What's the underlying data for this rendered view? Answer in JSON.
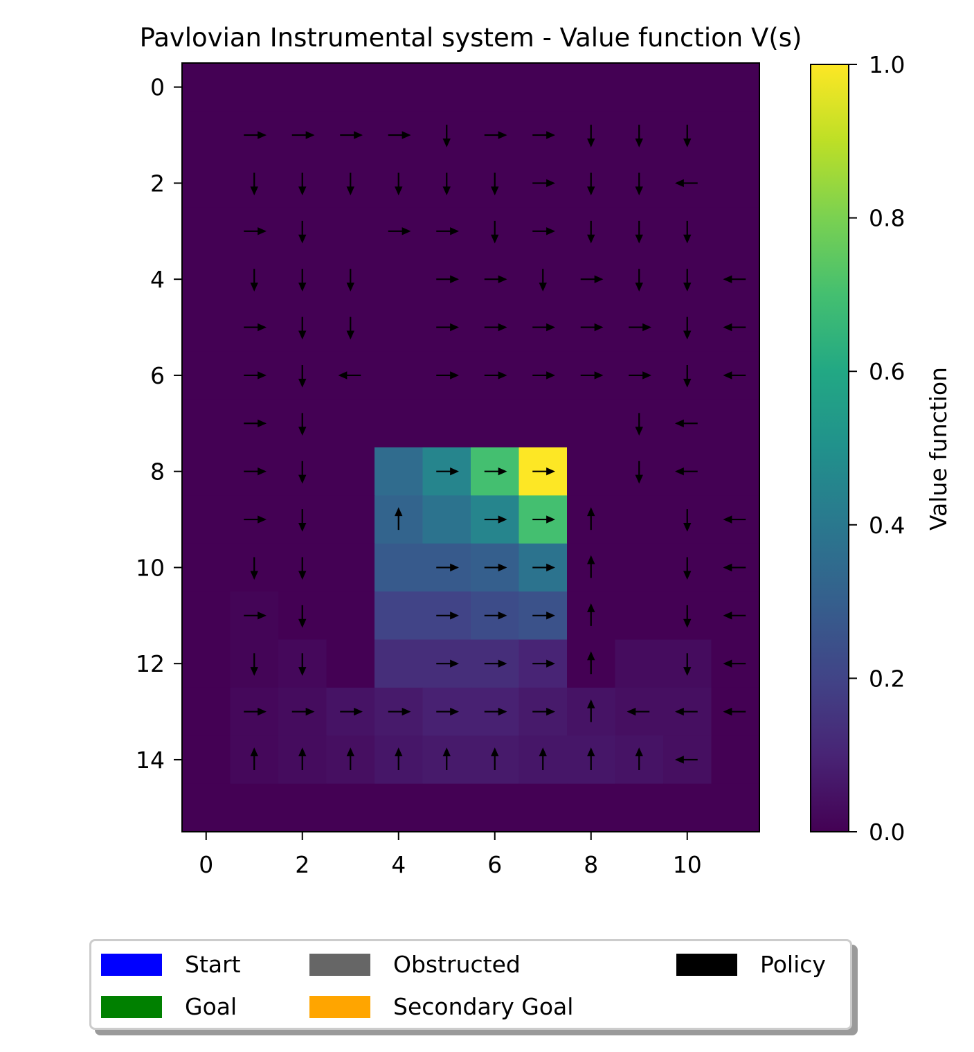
{
  "chart_data": {
    "type": "heatmap",
    "title": "Pavlovian Instrumental system - Value function V(s)",
    "xlabel": "",
    "ylabel": "",
    "xlim": [
      -0.5,
      11.5
    ],
    "ylim": [
      15.5,
      -0.5
    ],
    "x_ticks": [
      "0",
      "2",
      "4",
      "6",
      "8",
      "10"
    ],
    "y_ticks": [
      "0",
      "2",
      "4",
      "6",
      "8",
      "10",
      "12",
      "14"
    ],
    "colormap": "viridis",
    "colorbar": {
      "label": "Value function",
      "range": [
        0,
        1
      ],
      "ticks": [
        "0.0",
        "0.2",
        "0.4",
        "0.6",
        "0.8",
        "1.0"
      ]
    },
    "grid_size": {
      "rows": 16,
      "cols": 12
    },
    "values": [
      [
        0,
        0,
        0,
        0,
        0,
        0,
        0,
        0,
        0,
        0,
        0,
        0
      ],
      [
        0,
        0,
        0,
        0,
        0,
        0,
        0,
        0,
        0,
        0,
        0,
        0
      ],
      [
        0,
        0,
        0,
        0,
        0,
        0,
        0,
        0,
        0,
        0,
        0,
        0
      ],
      [
        0,
        0,
        0,
        0,
        0,
        0,
        0,
        0,
        0,
        0,
        0,
        0
      ],
      [
        0,
        0,
        0,
        0,
        0,
        0,
        0,
        0,
        0,
        0,
        0,
        0
      ],
      [
        0,
        0,
        0,
        0,
        0,
        0,
        0,
        0,
        0,
        0,
        0,
        0
      ],
      [
        0,
        0,
        0,
        0,
        0,
        0,
        0,
        0,
        0,
        0,
        0,
        0
      ],
      [
        0,
        0,
        0,
        0,
        0,
        0,
        0,
        0,
        0,
        0,
        0,
        0
      ],
      [
        0,
        0,
        0,
        0,
        0.35,
        0.45,
        0.7,
        1.0,
        0,
        0,
        0,
        0
      ],
      [
        0,
        0,
        0,
        0,
        0.32,
        0.38,
        0.45,
        0.7,
        0,
        0,
        0,
        0
      ],
      [
        0,
        0,
        0,
        0,
        0.28,
        0.28,
        0.3,
        0.38,
        0,
        0,
        0,
        0
      ],
      [
        0,
        0.01,
        0,
        0,
        0.2,
        0.2,
        0.23,
        0.25,
        0,
        0,
        0,
        0
      ],
      [
        0,
        0.01,
        0.02,
        0,
        0.13,
        0.13,
        0.13,
        0.1,
        0,
        0.03,
        0.03,
        0
      ],
      [
        0,
        0.02,
        0.03,
        0.05,
        0.07,
        0.09,
        0.09,
        0.07,
        0.05,
        0.04,
        0.04,
        0
      ],
      [
        0,
        0.02,
        0.03,
        0.04,
        0.06,
        0.07,
        0.07,
        0.06,
        0.06,
        0.05,
        0.04,
        0
      ],
      [
        0,
        0,
        0,
        0,
        0,
        0,
        0,
        0,
        0,
        0,
        0,
        0
      ]
    ],
    "policy": [
      "............",
      ".RRRRDRRDDD.",
      ".DDDDDDRDDL.",
      ".RD.RRDRDDD.",
      ".DDD.RRDRDDL",
      ".RDD.RRRRRDL",
      ".RDL.RRRRRDL",
      ".RD......DL.",
      ".RD..RRR.DL.",
      ".RD.U.RRU.DL",
      ".DD..RRRU.DL",
      ".RD..RRRU.DL",
      ".DD..RRRU.DL",
      ".RRRRRRRULLL",
      ".UUUUUUUUUL.",
      "............"
    ],
    "legend": [
      {
        "label": "Start",
        "color": "#0000ff"
      },
      {
        "label": "Goal",
        "color": "#008000"
      },
      {
        "label": "Obstructed",
        "color": "#666666"
      },
      {
        "label": "Secondary Goal",
        "color": "#ffa500"
      },
      {
        "label": "Policy",
        "color": "#000000"
      }
    ]
  }
}
